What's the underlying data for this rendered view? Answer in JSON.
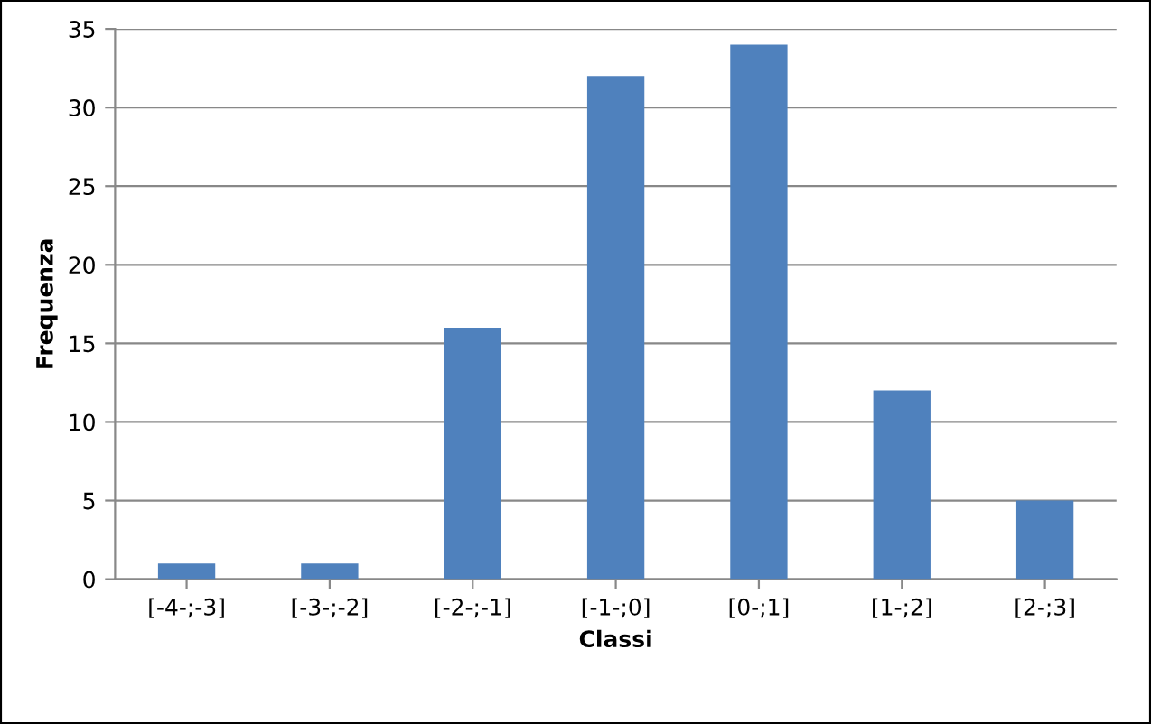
{
  "chart_data": {
    "type": "bar",
    "xlabel": "Classi",
    "ylabel": "Frequenza",
    "categories": [
      "[-4-;-3]",
      "[-3-;-2]",
      "[-2-;-1]",
      "[-1-;0]",
      "[0-;1]",
      "[1-;2]",
      "[2-;3]"
    ],
    "values": [
      1,
      1,
      16,
      32,
      34,
      12,
      5
    ],
    "color": "#4f81bd",
    "ylim": [
      0,
      35
    ],
    "yticks": [
      0,
      5,
      10,
      15,
      20,
      25,
      30,
      35
    ],
    "grid": "y",
    "legend": false
  }
}
